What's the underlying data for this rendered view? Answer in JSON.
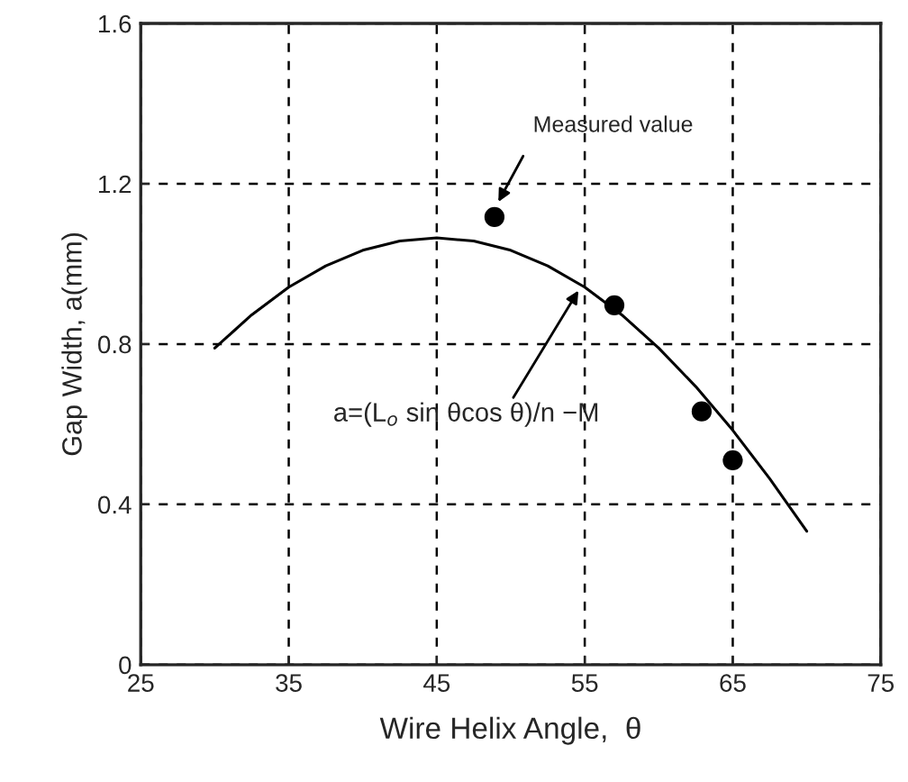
{
  "chart_data": {
    "type": "scatter",
    "xlabel": "Wire Helix Angle,  θ",
    "ylabel": "Gap Width, a(mm)",
    "xlim": [
      25,
      75
    ],
    "xticks": [
      25,
      35,
      45,
      55,
      65,
      75
    ],
    "ylim": [
      0,
      1.6
    ],
    "yticks": [
      0,
      0.4,
      0.8,
      1.2,
      1.6
    ],
    "grid": true,
    "series": [
      {
        "type": "line",
        "color": "#000000",
        "marker": "none",
        "line_style": "solid",
        "x": [
          30,
          32.5,
          35,
          37.5,
          40,
          42.5,
          45,
          47.5,
          50,
          52.5,
          55,
          57.5,
          60,
          62.5,
          65,
          67.5,
          70
        ],
        "values": [
          0.79,
          0.873,
          0.942,
          0.995,
          1.034,
          1.057,
          1.065,
          1.057,
          1.034,
          0.995,
          0.942,
          0.873,
          0.79,
          0.694,
          0.585,
          0.464,
          0.333
        ]
      },
      {
        "color": "#000000",
        "marker": "circle",
        "x": [
          48.9,
          57.0,
          62.9,
          65.0
        ],
        "values": [
          1.117,
          0.897,
          0.632,
          0.51
        ]
      }
    ],
    "annotations": [
      "Measured value",
      "a=(L$_{o}$ sin θcos θ)/n −M"
    ]
  }
}
